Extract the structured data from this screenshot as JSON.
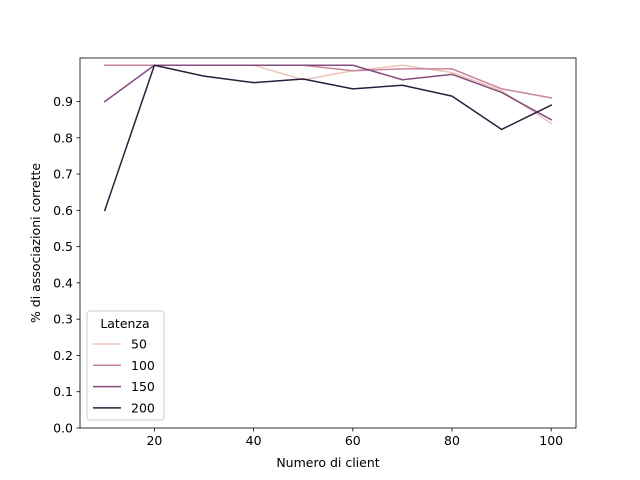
{
  "chart_data": {
    "type": "line",
    "title": "",
    "xlabel": "Numero di client",
    "ylabel": "% di associazioni corrette",
    "xlim": [
      5,
      105
    ],
    "ylim": [
      0,
      1.02
    ],
    "xticks": [
      20,
      40,
      60,
      80,
      100
    ],
    "yticks": [
      0.0,
      0.1,
      0.2,
      0.3,
      0.4,
      0.5,
      0.6,
      0.7,
      0.8,
      0.9
    ],
    "grid": false,
    "x": [
      10,
      20,
      30,
      40,
      50,
      60,
      70,
      80,
      90,
      100
    ],
    "legend": {
      "title": "Latenza",
      "placement": "lower-left"
    },
    "series": [
      {
        "name": "50",
        "color": "#ecc5bb",
        "values": [
          1.0,
          1.0,
          1.0,
          1.0,
          0.96,
          0.985,
          1.0,
          0.98,
          0.93,
          0.84
        ]
      },
      {
        "name": "100",
        "color": "#c9849e",
        "values": [
          1.0,
          1.0,
          1.0,
          1.0,
          1.0,
          0.985,
          0.99,
          0.99,
          0.935,
          0.91
        ]
      },
      {
        "name": "150",
        "color": "#844d80",
        "values": [
          0.9,
          1.0,
          1.0,
          1.0,
          1.0,
          1.0,
          0.96,
          0.975,
          0.925,
          0.85
        ]
      },
      {
        "name": "200",
        "color": "#2c1e3c",
        "values": [
          0.6,
          1.0,
          0.97,
          0.952,
          0.962,
          0.935,
          0.945,
          0.915,
          0.823,
          0.89
        ]
      }
    ]
  }
}
